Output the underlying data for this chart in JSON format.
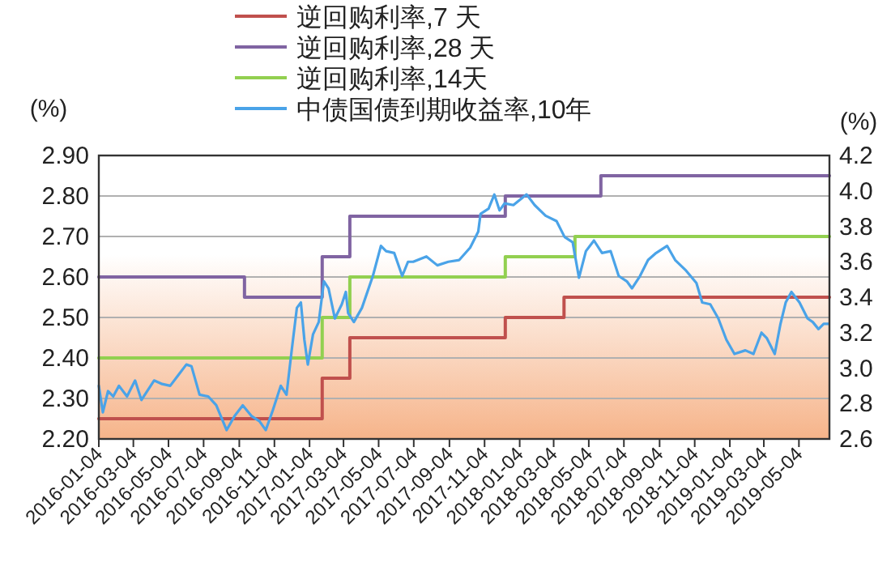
{
  "chart_data": {
    "type": "line",
    "ylabel": "(%)",
    "y2label": "(%)",
    "grid": "y",
    "legend": "top",
    "xlim": [
      "2016-01-04",
      "2019-06-26"
    ],
    "xticks": [
      "2016-01-04",
      "2016-03-04",
      "2016-05-04",
      "2016-07-04",
      "2016-09-04",
      "2016-11-04",
      "2017-01-04",
      "2017-03-04",
      "2017-05-04",
      "2017-07-04",
      "2017-09-04",
      "2017-11-04",
      "2018-01-04",
      "2018-03-04",
      "2018-05-04",
      "2018-07-04",
      "2018-09-04",
      "2018-11-04",
      "2019-01-04",
      "2019-03-04",
      "2019-05-04"
    ],
    "ylim": [
      2.2,
      2.9
    ],
    "yticks": [
      {
        "value": 2.2,
        "label": "2.20"
      },
      {
        "value": 2.3,
        "label": "2.30"
      },
      {
        "value": 2.4,
        "label": "2.40"
      },
      {
        "value": 2.5,
        "label": "2.50"
      },
      {
        "value": 2.6,
        "label": "2.60"
      },
      {
        "value": 2.7,
        "label": "2.70"
      },
      {
        "value": 2.8,
        "label": "2.80"
      },
      {
        "value": 2.9,
        "label": "2.90"
      }
    ],
    "y2lim": [
      2.6,
      4.2
    ],
    "y2ticks": [
      2.6,
      2.8,
      {
        "value": 3.0,
        "label": "3.0"
      },
      3.2,
      3.4,
      3.6,
      3.8,
      {
        "value": 4.0,
        "label": "4.0"
      },
      4.2
    ],
    "series": [
      {
        "name": "逆回购利率,7 天",
        "type": "step",
        "color": "#c0504d",
        "x": [
          "2016-01-04",
          "2017-01-26",
          "2017-03-15",
          "2017-12-10",
          "2018-03-22",
          "2019-06-26"
        ],
        "values": [
          2.25,
          2.35,
          2.45,
          2.5,
          2.55,
          2.55
        ]
      },
      {
        "name": "逆回购利率,28 天",
        "type": "step",
        "color": "#8064a2",
        "x": [
          "2016-01-04",
          "2016-09-13",
          "2017-01-26",
          "2017-03-15",
          "2017-12-10",
          "2018-05-25",
          "2019-06-26"
        ],
        "values": [
          2.6,
          2.55,
          2.65,
          2.75,
          2.8,
          2.85,
          2.85
        ]
      },
      {
        "name": "逆回购利率,14天",
        "type": "step",
        "color": "#92d050",
        "x": [
          "2016-01-04",
          "2017-01-26",
          "2017-03-15",
          "2017-12-10",
          "2018-04-10",
          "2019-06-26"
        ],
        "values": [
          2.4,
          2.5,
          2.6,
          2.65,
          2.7,
          2.7
        ]
      },
      {
        "name": "中债国债到期收益率,10年",
        "type": "line",
        "axis": "y2",
        "color": "#4aa3e8",
        "x": [
          "2016-01-04",
          "2016-01-11",
          "2016-01-20",
          "2016-01-29",
          "2016-02-08",
          "2016-02-22",
          "2016-03-07",
          "2016-03-18",
          "2016-04-09",
          "2016-04-23",
          "2016-05-07",
          "2016-05-21",
          "2016-06-04",
          "2016-06-13",
          "2016-06-27",
          "2016-07-12",
          "2016-07-26",
          "2016-08-13",
          "2016-08-27",
          "2016-09-10",
          "2016-09-25",
          "2016-10-09",
          "2016-10-20",
          "2016-11-01",
          "2016-11-15",
          "2016-11-25",
          "2016-12-04",
          "2016-12-13",
          "2016-12-20",
          "2016-12-26",
          "2017-01-01",
          "2017-01-10",
          "2017-01-20",
          "2017-01-29",
          "2017-02-06",
          "2017-02-17",
          "2017-03-01",
          "2017-03-08",
          "2017-03-12",
          "2017-03-22",
          "2017-04-05",
          "2017-04-24",
          "2017-05-08",
          "2017-05-17",
          "2017-05-31",
          "2017-06-14",
          "2017-06-24",
          "2017-07-03",
          "2017-07-26",
          "2017-08-14",
          "2017-09-02",
          "2017-09-21",
          "2017-10-10",
          "2017-10-24",
          "2017-10-28",
          "2017-11-11",
          "2017-11-21",
          "2017-11-30",
          "2017-12-09",
          "2017-12-24",
          "2018-01-16",
          "2018-01-30",
          "2018-02-18",
          "2018-03-09",
          "2018-03-23",
          "2018-04-06",
          "2018-04-17",
          "2018-04-29",
          "2018-05-13",
          "2018-05-27",
          "2018-06-11",
          "2018-06-25",
          "2018-07-09",
          "2018-07-18",
          "2018-08-01",
          "2018-08-15",
          "2018-08-29",
          "2018-09-17",
          "2018-10-01",
          "2018-10-20",
          "2018-11-07",
          "2018-11-17",
          "2018-12-01",
          "2018-12-15",
          "2018-12-29",
          "2019-01-12",
          "2019-01-31",
          "2019-02-14",
          "2019-02-28",
          "2019-03-09",
          "2019-03-23",
          "2019-04-02",
          "2019-04-11",
          "2019-04-21",
          "2019-05-05",
          "2019-05-19",
          "2019-05-28",
          "2019-06-07",
          "2019-06-16",
          "2019-06-25"
        ],
        "values": [
          2.9,
          2.75,
          2.87,
          2.84,
          2.9,
          2.84,
          2.93,
          2.82,
          2.93,
          2.91,
          2.9,
          2.96,
          3.02,
          3.01,
          2.85,
          2.84,
          2.79,
          2.65,
          2.73,
          2.79,
          2.73,
          2.7,
          2.65,
          2.76,
          2.9,
          2.85,
          3.1,
          3.34,
          3.37,
          3.16,
          3.02,
          3.19,
          3.26,
          3.49,
          3.45,
          3.28,
          3.36,
          3.43,
          3.31,
          3.26,
          3.34,
          3.52,
          3.69,
          3.66,
          3.65,
          3.52,
          3.6,
          3.6,
          3.63,
          3.58,
          3.6,
          3.61,
          3.68,
          3.77,
          3.87,
          3.9,
          3.98,
          3.89,
          3.93,
          3.92,
          3.98,
          3.92,
          3.86,
          3.83,
          3.74,
          3.71,
          3.51,
          3.66,
          3.72,
          3.65,
          3.66,
          3.52,
          3.49,
          3.45,
          3.52,
          3.61,
          3.65,
          3.69,
          3.61,
          3.55,
          3.48,
          3.37,
          3.36,
          3.28,
          3.16,
          3.08,
          3.1,
          3.08,
          3.2,
          3.17,
          3.08,
          3.25,
          3.37,
          3.43,
          3.37,
          3.28,
          3.26,
          3.22,
          3.25,
          3.25
        ]
      }
    ]
  }
}
